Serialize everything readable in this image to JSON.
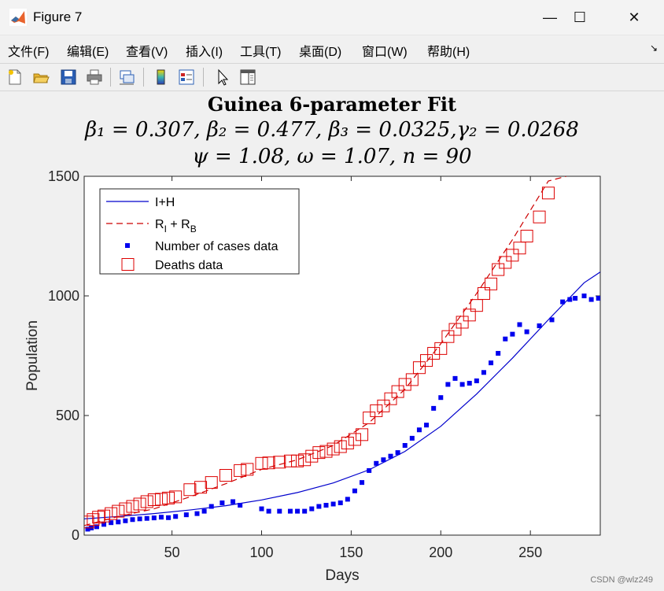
{
  "window": {
    "title": "Figure 7",
    "minimize": "—",
    "maximize": "☐",
    "close": "✕"
  },
  "menu": [
    "文件(F)",
    "编辑(E)",
    "查看(V)",
    "插入(I)",
    "工具(T)",
    "桌面(D)",
    "窗口(W)",
    "帮助(H)"
  ],
  "menu_arrow": "↘",
  "toolbar": {
    "icons": [
      "new-figure-icon",
      "open-file-icon",
      "save-icon",
      "print-icon",
      "link-plot-icon",
      "colorbar-icon",
      "legend-icon",
      "pointer-icon",
      "property-editor-icon"
    ]
  },
  "plot": {
    "title_line1": "Guinea 6-parameter Fit",
    "title_line2": "β₁ = 0.307, β₂ = 0.477, β₃ = 0.0325,γ₂ = 0.0268",
    "title_line3": "ψ = 1.08, ω = 1.07, n = 90"
  },
  "chart_data": {
    "type": "scatter",
    "xlabel": "Days",
    "ylabel": "Population",
    "xlim": [
      1,
      289
    ],
    "ylim": [
      0,
      1500
    ],
    "xticks": [
      50,
      100,
      150,
      200,
      250
    ],
    "yticks": [
      0,
      500,
      1000,
      1500
    ],
    "legend_position": "top-left",
    "grid": false,
    "series": [
      {
        "name": "I+H",
        "style": "solid-line",
        "color": "#0000cc",
        "x": [
          1,
          20,
          40,
          60,
          80,
          100,
          120,
          140,
          160,
          180,
          200,
          220,
          240,
          260,
          280,
          289
        ],
        "values": [
          68,
          78,
          90,
          105,
          123,
          147,
          178,
          218,
          273,
          350,
          455,
          590,
          740,
          900,
          1055,
          1100
        ]
      },
      {
        "name": "R_I + R_B",
        "legend_main": "R",
        "legend_sub1": "I",
        "legend_mid": " + R",
        "legend_sub2": "B",
        "style": "dashed-line",
        "color": "#cc0000",
        "x": [
          1,
          20,
          40,
          60,
          80,
          100,
          120,
          140,
          160,
          180,
          200,
          220,
          240,
          260,
          270
        ],
        "values": [
          40,
          78,
          110,
          160,
          215,
          275,
          315,
          375,
          470,
          610,
          800,
          1010,
          1235,
          1480,
          1500
        ]
      },
      {
        "name": "Number of cases data",
        "style": "square-marker-filled",
        "color": "#0000ee",
        "x": [
          3,
          5,
          8,
          12,
          16,
          20,
          24,
          28,
          32,
          36,
          40,
          44,
          48,
          52,
          58,
          64,
          68,
          72,
          78,
          84,
          88,
          100,
          104,
          110,
          116,
          120,
          124,
          128,
          132,
          136,
          140,
          144,
          148,
          152,
          156,
          160,
          164,
          168,
          172,
          176,
          180,
          184,
          188,
          192,
          196,
          200,
          204,
          208,
          212,
          216,
          220,
          224,
          228,
          232,
          236,
          240,
          244,
          248,
          255,
          262,
          268,
          272,
          275,
          280,
          284,
          288
        ],
        "values": [
          25,
          30,
          35,
          45,
          52,
          55,
          60,
          65,
          68,
          70,
          72,
          75,
          73,
          78,
          85,
          90,
          100,
          120,
          135,
          140,
          125,
          110,
          100,
          100,
          100,
          100,
          100,
          110,
          120,
          125,
          130,
          135,
          150,
          185,
          220,
          270,
          300,
          315,
          330,
          345,
          375,
          405,
          440,
          460,
          530,
          575,
          630,
          655,
          630,
          635,
          645,
          680,
          720,
          760,
          820,
          840,
          880,
          850,
          875,
          900,
          975,
          985,
          990,
          1000,
          985,
          990
        ]
      },
      {
        "name": "Deaths data",
        "style": "square-marker-open",
        "color": "#dd0000",
        "x": [
          3,
          6,
          9,
          12,
          16,
          20,
          24,
          28,
          32,
          36,
          40,
          44,
          48,
          52,
          60,
          66,
          72,
          80,
          88,
          92,
          100,
          104,
          110,
          116,
          120,
          124,
          128,
          132,
          136,
          140,
          144,
          148,
          152,
          156,
          160,
          164,
          168,
          172,
          176,
          180,
          184,
          188,
          192,
          196,
          200,
          204,
          208,
          212,
          216,
          220,
          224,
          228,
          232,
          236,
          240,
          244,
          248,
          255,
          260
        ],
        "values": [
          55,
          65,
          75,
          80,
          90,
          100,
          110,
          120,
          130,
          140,
          148,
          150,
          155,
          160,
          190,
          200,
          220,
          250,
          270,
          275,
          300,
          302,
          305,
          310,
          310,
          315,
          330,
          345,
          350,
          360,
          370,
          385,
          400,
          420,
          490,
          520,
          540,
          570,
          600,
          630,
          650,
          700,
          730,
          760,
          780,
          830,
          860,
          890,
          920,
          960,
          1010,
          1050,
          1110,
          1140,
          1170,
          1200,
          1250,
          1330,
          1430
        ]
      }
    ]
  },
  "watermark": "CSDN @wlz249"
}
